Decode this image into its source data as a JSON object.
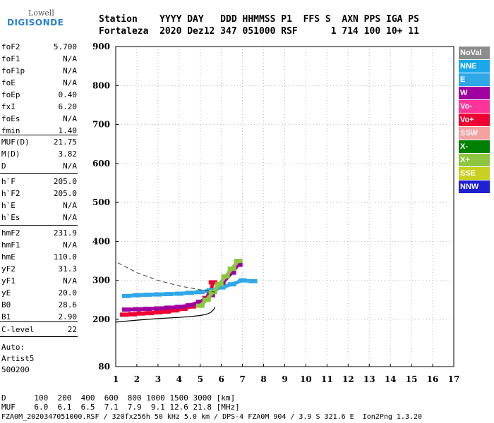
{
  "logo": {
    "line1": "Lowell",
    "line2": "DIGISONDE"
  },
  "header": {
    "row1": "Station    YYYY DAY   DDD HHMMSS P1  FFS S  AXN PPS IGA PS",
    "row2": "Fortaleza  2020 Dez12 347 051000 RSF      1 714 100 10+ 11"
  },
  "params": [
    {
      "k": "foF2",
      "v": "5.700"
    },
    {
      "k": "foF1",
      "v": "N/A"
    },
    {
      "k": "foF1p",
      "v": "N/A"
    },
    {
      "k": "foE",
      "v": "N/A"
    },
    {
      "k": "foEp",
      "v": "0.40"
    },
    {
      "k": "fxI",
      "v": "6.20"
    },
    {
      "k": "foEs",
      "v": "N/A"
    },
    {
      "k": "fmin",
      "v": "1.40"
    },
    {
      "k": "MUF(D)",
      "v": "21.75"
    },
    {
      "k": "M(D)",
      "v": "3.82"
    },
    {
      "k": "D",
      "v": "N/A"
    },
    {
      "k": "h`F",
      "v": "205.0"
    },
    {
      "k": "h`F2",
      "v": "205.0"
    },
    {
      "k": "h`E",
      "v": "N/A"
    },
    {
      "k": "h`Es",
      "v": "N/A"
    },
    {
      "k": "hmF2",
      "v": "231.9"
    },
    {
      "k": "hmF1",
      "v": "N/A"
    },
    {
      "k": "hmE",
      "v": "110.0"
    },
    {
      "k": "yF2",
      "v": "31.3"
    },
    {
      "k": "yF1",
      "v": "N/A"
    },
    {
      "k": "yE",
      "v": "20.0"
    },
    {
      "k": "B0",
      "v": "28.6"
    },
    {
      "k": "B1",
      "v": "2.90"
    },
    {
      "k": "C-level",
      "v": "22"
    }
  ],
  "auto": {
    "line1": "Auto:",
    "line2": "Artist5",
    "line3": "500200"
  },
  "legend": [
    {
      "label": "NoVal",
      "color": "#8c8c8c"
    },
    {
      "label": "NNE",
      "color": "#1aa7ec"
    },
    {
      "label": "E",
      "color": "#30a8e8"
    },
    {
      "label": "W",
      "color": "#a000a0"
    },
    {
      "label": "Vo-",
      "color": "#ff3399"
    },
    {
      "label": "Vo+",
      "color": "#ee0033"
    },
    {
      "label": "SSW",
      "color": "#f4a0a0"
    },
    {
      "label": "X-",
      "color": "#008000"
    },
    {
      "label": "X+",
      "color": "#8cc63e"
    },
    {
      "label": "SSE",
      "color": "#c8d020"
    },
    {
      "label": "NNW",
      "color": "#2020d0"
    }
  ],
  "bottom": {
    "row1": "D      100  200  400  600  800 1000 1500 3000 [km]",
    "row2": "MUF    6.0  6.1  6.5  7.1  7.9  9.1 12.6 21.8 [MHz]",
    "row3": "FZA0M_2020347051000.RSF / 320fx256h 50 kHz 5.0 km / DPS-4 FZA0M 904 / 3.9 S 321.6 E  Ion2Png 1.3.20"
  },
  "chart_data": {
    "type": "scatter",
    "title": "",
    "xlabel": "",
    "ylabel": "",
    "xlim": [
      1,
      17
    ],
    "ylim": [
      80,
      900
    ],
    "x_ticks": [
      1,
      2,
      3,
      4,
      5,
      6,
      7,
      8,
      9,
      10,
      11,
      12,
      13,
      14,
      15,
      16,
      17
    ],
    "y_ticks": [
      80,
      200,
      300,
      400,
      500,
      600,
      700,
      800,
      900
    ],
    "grid": "dotted",
    "series": [
      {
        "name": "Vo+",
        "color": "#ee0033",
        "x": [
          1.4,
          1.8,
          2.2,
          2.6,
          3.0,
          3.4,
          3.8,
          4.2,
          4.6,
          5.0,
          5.3,
          5.5,
          5.6
        ],
        "y": [
          212,
          213,
          215,
          216,
          218,
          220,
          223,
          227,
          233,
          242,
          255,
          272,
          295
        ]
      },
      {
        "name": "W",
        "color": "#a000a0",
        "x": [
          1.5,
          2.0,
          2.5,
          3.0,
          3.5,
          4.0,
          4.5,
          5.0,
          5.5,
          6.0,
          6.5,
          6.8
        ],
        "y": [
          225,
          226,
          227,
          228,
          230,
          232,
          236,
          245,
          262,
          290,
          320,
          340
        ]
      },
      {
        "name": "E",
        "color": "#30a8e8",
        "x": [
          1.5,
          2.0,
          2.5,
          3.0,
          3.5,
          4.0,
          4.5,
          5.0,
          5.5,
          6.0,
          6.5,
          7.0,
          7.5
        ],
        "y": [
          260,
          262,
          263,
          264,
          265,
          266,
          268,
          270,
          275,
          282,
          290,
          300,
          298
        ]
      },
      {
        "name": "X+",
        "color": "#8cc63e",
        "x": [
          5.0,
          5.3,
          5.6,
          5.9,
          6.2,
          6.5,
          6.8
        ],
        "y": [
          235,
          250,
          270,
          290,
          310,
          330,
          350
        ]
      }
    ],
    "fitted_profile": {
      "x": [
        1.0,
        2.0,
        3.0,
        4.0,
        4.5,
        5.0,
        5.3,
        5.5,
        5.65,
        5.7
      ],
      "y": [
        193,
        198,
        202,
        205,
        207,
        210,
        213,
        218,
        226,
        232
      ]
    },
    "dashed_line": {
      "x": [
        1.1,
        2.0,
        3.0,
        4.0,
        5.0,
        5.7
      ],
      "y": [
        345,
        320,
        300,
        286,
        276,
        270
      ]
    }
  }
}
